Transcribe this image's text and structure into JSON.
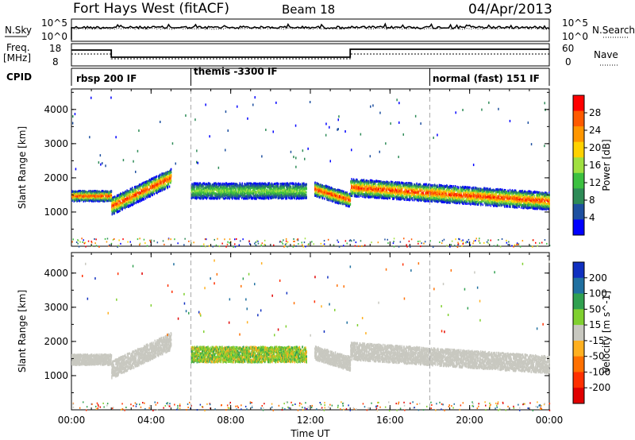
{
  "header": {
    "title": "Fort Hays West (fitACF)",
    "beam": "Beam 18",
    "date": "04/Apr/2013"
  },
  "panels": {
    "nsky": {
      "left_label": "N.Sky",
      "right_label": "N.Search",
      "left_ticks": [
        "10^5",
        "10^0"
      ],
      "right_ticks": [
        "10^5",
        "10^0"
      ]
    },
    "freq": {
      "left_label_1": "Freq.",
      "left_label_2": "[MHz]",
      "right_label": "Nave",
      "left_ticks": [
        "18",
        "8"
      ],
      "right_ticks": [
        "60",
        "0"
      ]
    },
    "cpid": {
      "label": "CPID",
      "segments": [
        {
          "label": "rbsp 200 IF",
          "start_hour": 0
        },
        {
          "label": "themis -3300 IF",
          "start_hour": 6
        },
        {
          "label": "normal (fast) 151 IF",
          "start_hour": 18
        }
      ]
    }
  },
  "x_axis": {
    "label": "Time UT",
    "ticks": [
      "00:00",
      "04:00",
      "08:00",
      "12:00",
      "16:00",
      "20:00",
      "00:00"
    ],
    "tick_hours": [
      0,
      4,
      8,
      12,
      16,
      20,
      24
    ],
    "range": [
      0,
      24
    ]
  },
  "chart_data": [
    {
      "type": "heatmap",
      "name": "power",
      "ylabel": "Slant Range [km]",
      "ylim": [
        0,
        4600
      ],
      "y_ticks": [
        1000,
        2000,
        3000,
        4000
      ],
      "colorbar_label": "Power [dB]",
      "colorbar_ticks": [
        "28",
        "24",
        "20",
        "16",
        "12",
        "8",
        "4"
      ],
      "colorbar_colors": [
        "#ff0000",
        "#ff5a00",
        "#ff9600",
        "#ffd200",
        "#a0e040",
        "#3cc040",
        "#2e8b57",
        "#1e50a0",
        "#0000ff"
      ],
      "bands": [
        {
          "x": [
            0.0,
            2.0
          ],
          "range_center": 1500,
          "range_width": 300,
          "peak": "red"
        },
        {
          "x": [
            2.0,
            5.0
          ],
          "range_center": 1600,
          "range_width": 500,
          "peak": "red"
        },
        {
          "x": [
            6.0,
            11.8
          ],
          "range_center": 1650,
          "range_width": 450,
          "peak": "green"
        },
        {
          "x": [
            12.2,
            14.0
          ],
          "range_center": 1400,
          "range_width": 400,
          "peak": "red"
        },
        {
          "x": [
            14.0,
            24.0
          ],
          "range_center": 1550,
          "range_width": 500,
          "peak": "red"
        }
      ]
    },
    {
      "type": "heatmap",
      "name": "velocity",
      "ylabel": "Slant Range [km]",
      "ylim": [
        0,
        4600
      ],
      "y_ticks": [
        1000,
        2000,
        3000,
        4000
      ],
      "colorbar_label": "Velocity [m s^-1]",
      "colorbar_ticks": [
        "200",
        "100",
        "50",
        "15",
        "-15",
        "-50",
        "-100",
        "-200"
      ],
      "colorbar_colors": [
        "#1030c0",
        "#2070a0",
        "#30a050",
        "#80d030",
        "#c8c8c0",
        "#ffb020",
        "#ff7000",
        "#ff3000",
        "#e00000"
      ]
    }
  ]
}
